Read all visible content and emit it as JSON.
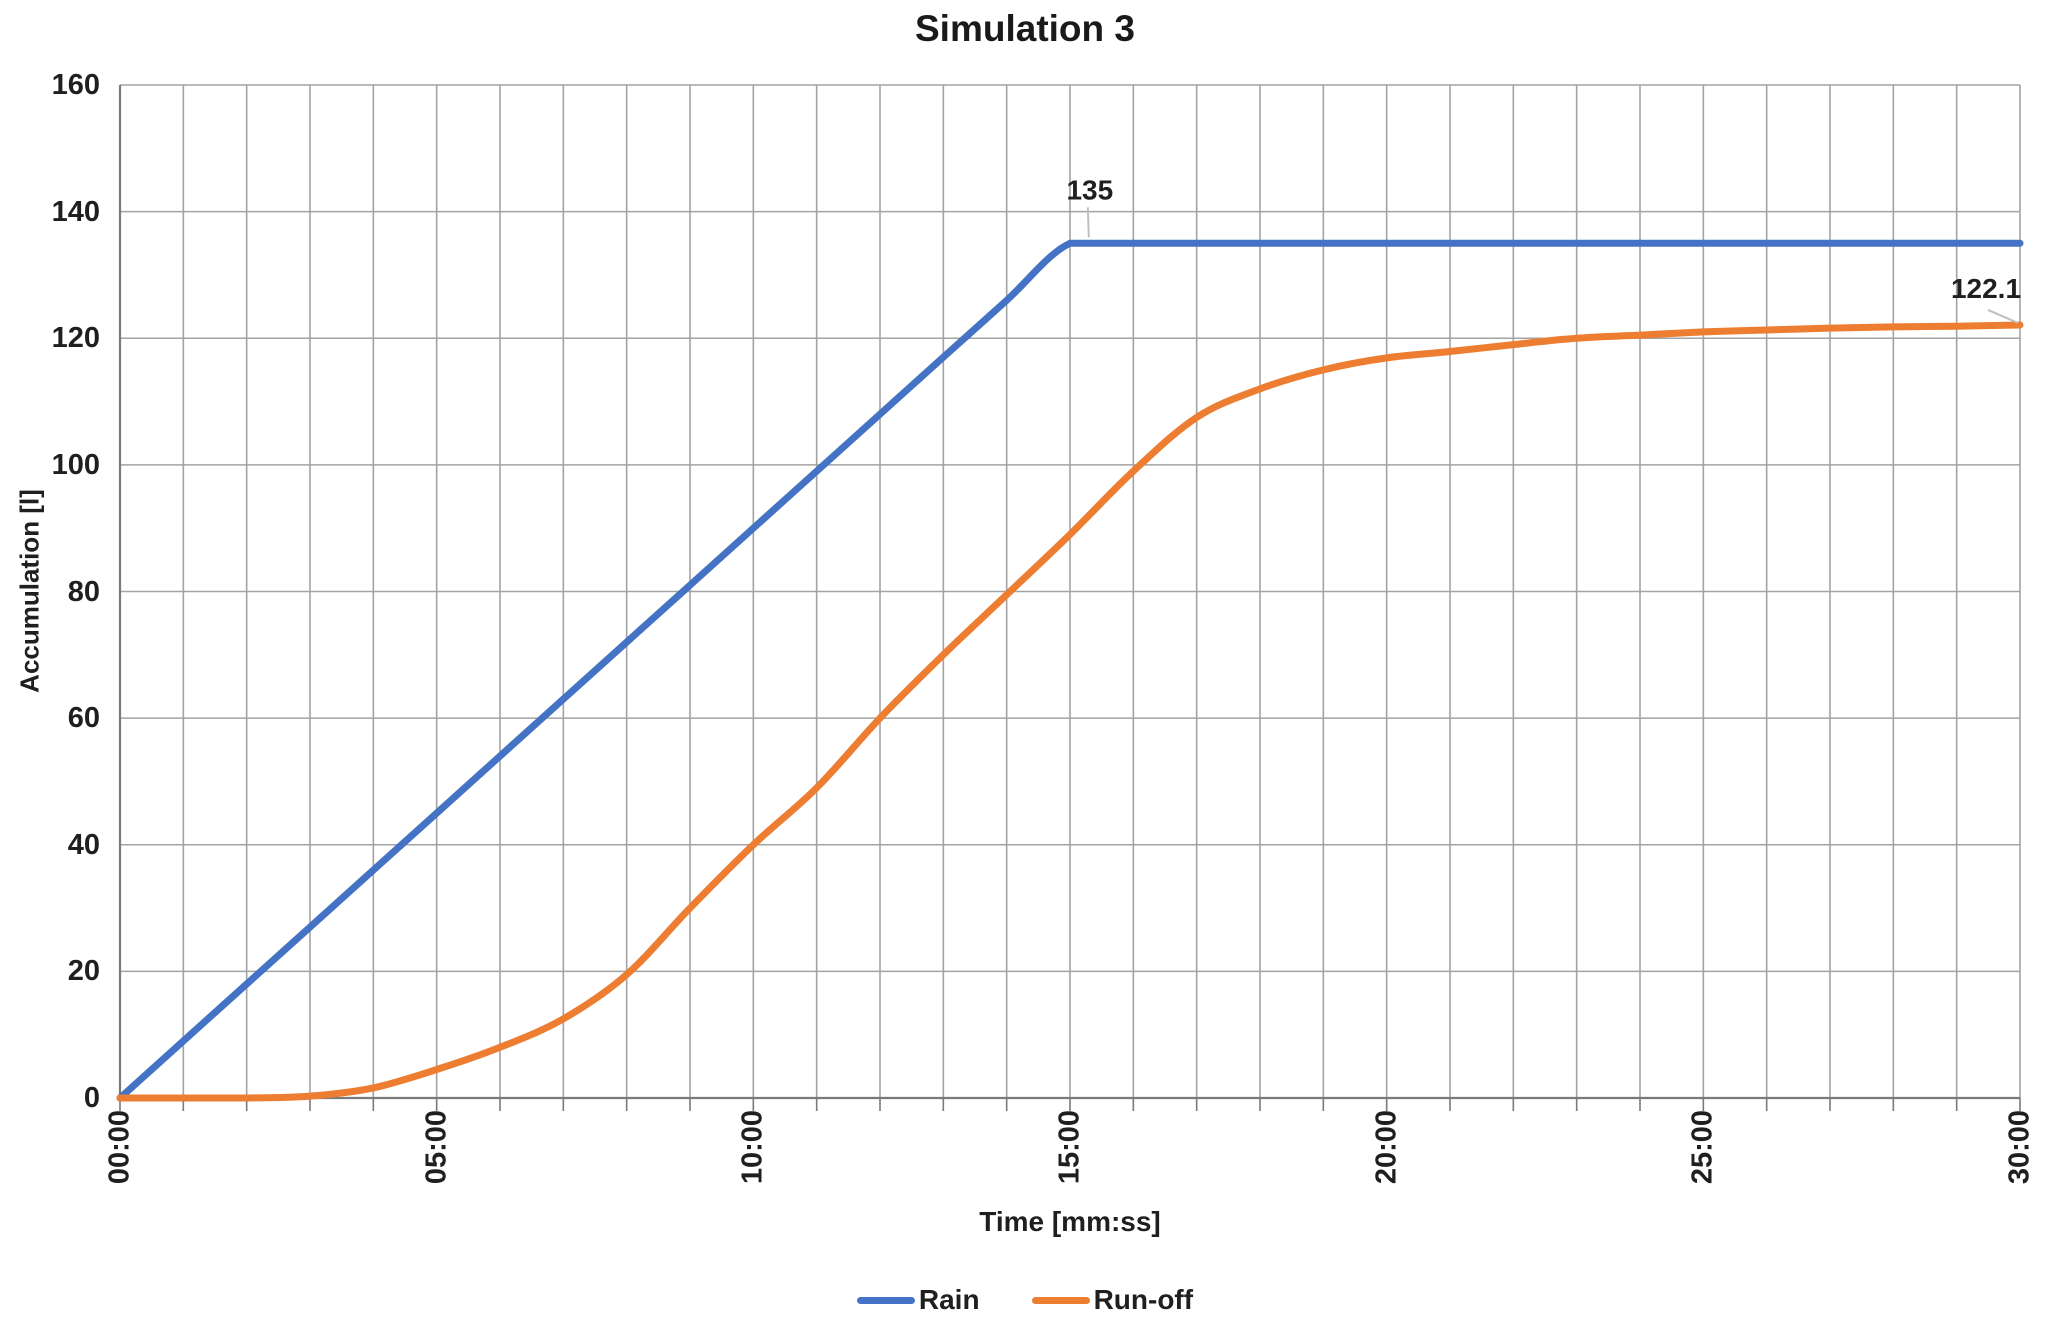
{
  "chart_data": {
    "type": "line",
    "title": "Simulation 3",
    "xlabel": "Time [mm:ss]",
    "ylabel": "Accumulation [l]",
    "xlim_minutes": [
      0,
      30
    ],
    "ylim": [
      0,
      160
    ],
    "x_minutes": [
      0,
      1,
      2,
      3,
      4,
      5,
      6,
      7,
      8,
      9,
      10,
      11,
      12,
      13,
      14,
      15,
      16,
      17,
      18,
      19,
      20,
      21,
      22,
      23,
      24,
      25,
      26,
      27,
      28,
      29,
      30
    ],
    "x_tick_labels": [
      "00:00",
      "05:00",
      "10:00",
      "15:00",
      "20:00",
      "25:00",
      "30:00"
    ],
    "x_tick_minutes": [
      0,
      5,
      10,
      15,
      20,
      25,
      30
    ],
    "y_ticks": [
      0,
      20,
      40,
      60,
      80,
      100,
      120,
      140,
      160
    ],
    "grid": {
      "vertical_every_minutes": 1,
      "horizontal_every_units": 20
    },
    "legend_position": "bottom",
    "series": [
      {
        "name": "Rain",
        "color": "#4472C4",
        "values": [
          0,
          9,
          18,
          27,
          36,
          45,
          54,
          63,
          72,
          81,
          90,
          99,
          108,
          117,
          126,
          135,
          135,
          135,
          135,
          135,
          135,
          135,
          135,
          135,
          135,
          135,
          135,
          135,
          135,
          135,
          135
        ]
      },
      {
        "name": "Run-off",
        "color": "#ED7D31",
        "values": [
          0,
          0,
          0,
          0.3,
          1.6,
          4.5,
          8,
          12.5,
          19.5,
          30,
          40,
          49,
          60,
          70,
          79.5,
          89,
          99,
          107.5,
          112,
          115,
          116.9,
          117.9,
          119,
          120,
          120.5,
          121,
          121.3,
          121.6,
          121.8,
          121.9,
          122.1
        ]
      }
    ],
    "annotations": [
      {
        "text": "135",
        "series": "Rain",
        "t_min": 15.25,
        "value": 135,
        "placement": "above"
      },
      {
        "text": "122.1",
        "series": "Run-off",
        "t_min": 30,
        "value": 122.1,
        "placement": "above-left"
      }
    ],
    "colors": {
      "gridline": "#a3a3a3",
      "axis": "#7a7a7a",
      "text": "#1f1f1f",
      "leader": "#bfbfbf",
      "background": "#ffffff"
    }
  }
}
